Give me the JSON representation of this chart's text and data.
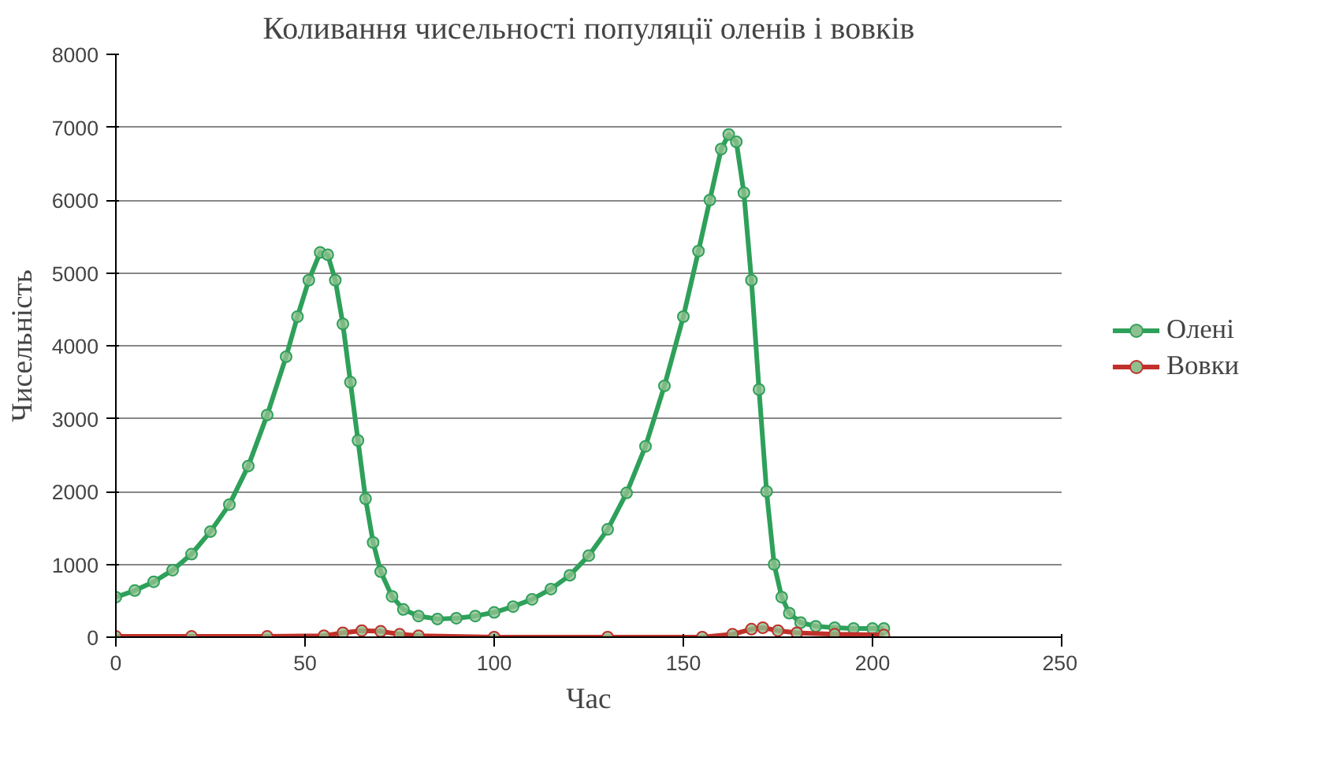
{
  "chart_data": {
    "type": "line",
    "title": "Коливання чисельності популяції оленів і вовків",
    "xlabel": "Час",
    "ylabel": "Чисельність",
    "xlim": [
      0,
      250
    ],
    "xticks": [
      0,
      50,
      100,
      150,
      200,
      250
    ],
    "ylim": [
      0,
      8000
    ],
    "yticks": [
      0,
      1000,
      2000,
      3000,
      4000,
      5000,
      6000,
      7000,
      8000
    ],
    "grid": "y",
    "legend": "right",
    "marker": "circle",
    "line_style": "solid",
    "series": [
      {
        "name": "Олені",
        "color": "#2ea05a",
        "x": [
          0,
          5,
          10,
          15,
          20,
          25,
          30,
          35,
          40,
          45,
          48,
          51,
          54,
          56,
          58,
          60,
          62,
          64,
          66,
          68,
          70,
          73,
          76,
          80,
          85,
          90,
          95,
          100,
          105,
          110,
          115,
          120,
          125,
          130,
          135,
          140,
          145,
          150,
          154,
          157,
          160,
          162,
          164,
          166,
          168,
          170,
          172,
          174,
          176,
          178,
          181,
          185,
          190,
          195,
          200,
          203
        ],
        "values": [
          550,
          640,
          760,
          920,
          1140,
          1450,
          1820,
          2350,
          3050,
          3850,
          4400,
          4900,
          5280,
          5250,
          4900,
          4300,
          3500,
          2700,
          1900,
          1300,
          900,
          560,
          380,
          290,
          250,
          260,
          290,
          340,
          420,
          520,
          660,
          850,
          1120,
          1480,
          1980,
          2620,
          3450,
          4400,
          5300,
          6000,
          6700,
          6900,
          6800,
          6100,
          4900,
          3400,
          2000,
          1000,
          550,
          330,
          200,
          150,
          130,
          120,
          120,
          120
        ]
      },
      {
        "name": "Вовки",
        "color": "#c0312b",
        "x": [
          0,
          20,
          40,
          55,
          60,
          65,
          70,
          75,
          80,
          100,
          130,
          155,
          163,
          168,
          171,
          175,
          180,
          190,
          203
        ],
        "values": [
          10,
          10,
          10,
          20,
          60,
          90,
          80,
          40,
          20,
          0,
          0,
          0,
          40,
          110,
          130,
          90,
          60,
          40,
          30
        ]
      }
    ]
  }
}
